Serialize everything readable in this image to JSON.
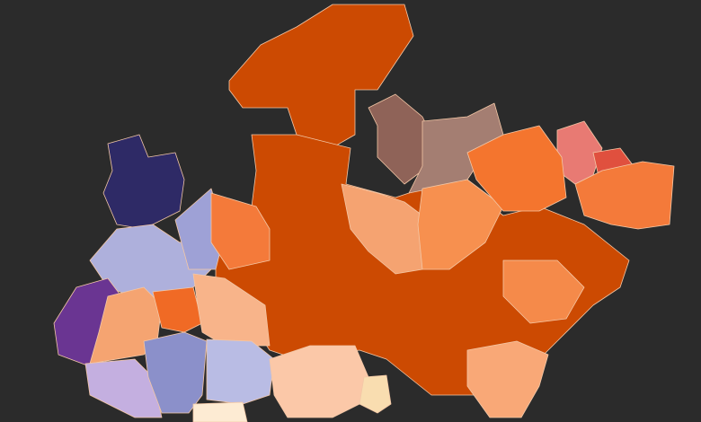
{
  "map": {
    "background": "#2b2b2b",
    "regions": [
      {
        "color": "#cc4a02"
      },
      {
        "color": "#cc4a02"
      },
      {
        "color": "#8f6358"
      },
      {
        "color": "#a47e72"
      },
      {
        "color": "#e87a73"
      },
      {
        "color": "#e0503e"
      },
      {
        "color": "#f47a3a"
      },
      {
        "color": "#f5a371"
      },
      {
        "color": "#f7904f"
      },
      {
        "color": "#f4752e"
      },
      {
        "color": "#2e2a66"
      },
      {
        "color": "#aeb0dc"
      },
      {
        "color": "#9ea1d6"
      },
      {
        "color": "#6a3592"
      },
      {
        "color": "#f5a471"
      },
      {
        "color": "#f06a25"
      },
      {
        "color": "#f8b48a"
      },
      {
        "color": "#c4afe0"
      },
      {
        "color": "#8b90ca"
      },
      {
        "color": "#b9bce4"
      },
      {
        "color": "#fdebd3"
      },
      {
        "color": "#fbc8a8"
      },
      {
        "color": "#f9ddb0"
      },
      {
        "color": "#f9a877"
      },
      {
        "color": "#f47a3a"
      },
      {
        "color": "#f58a4a"
      }
    ]
  }
}
